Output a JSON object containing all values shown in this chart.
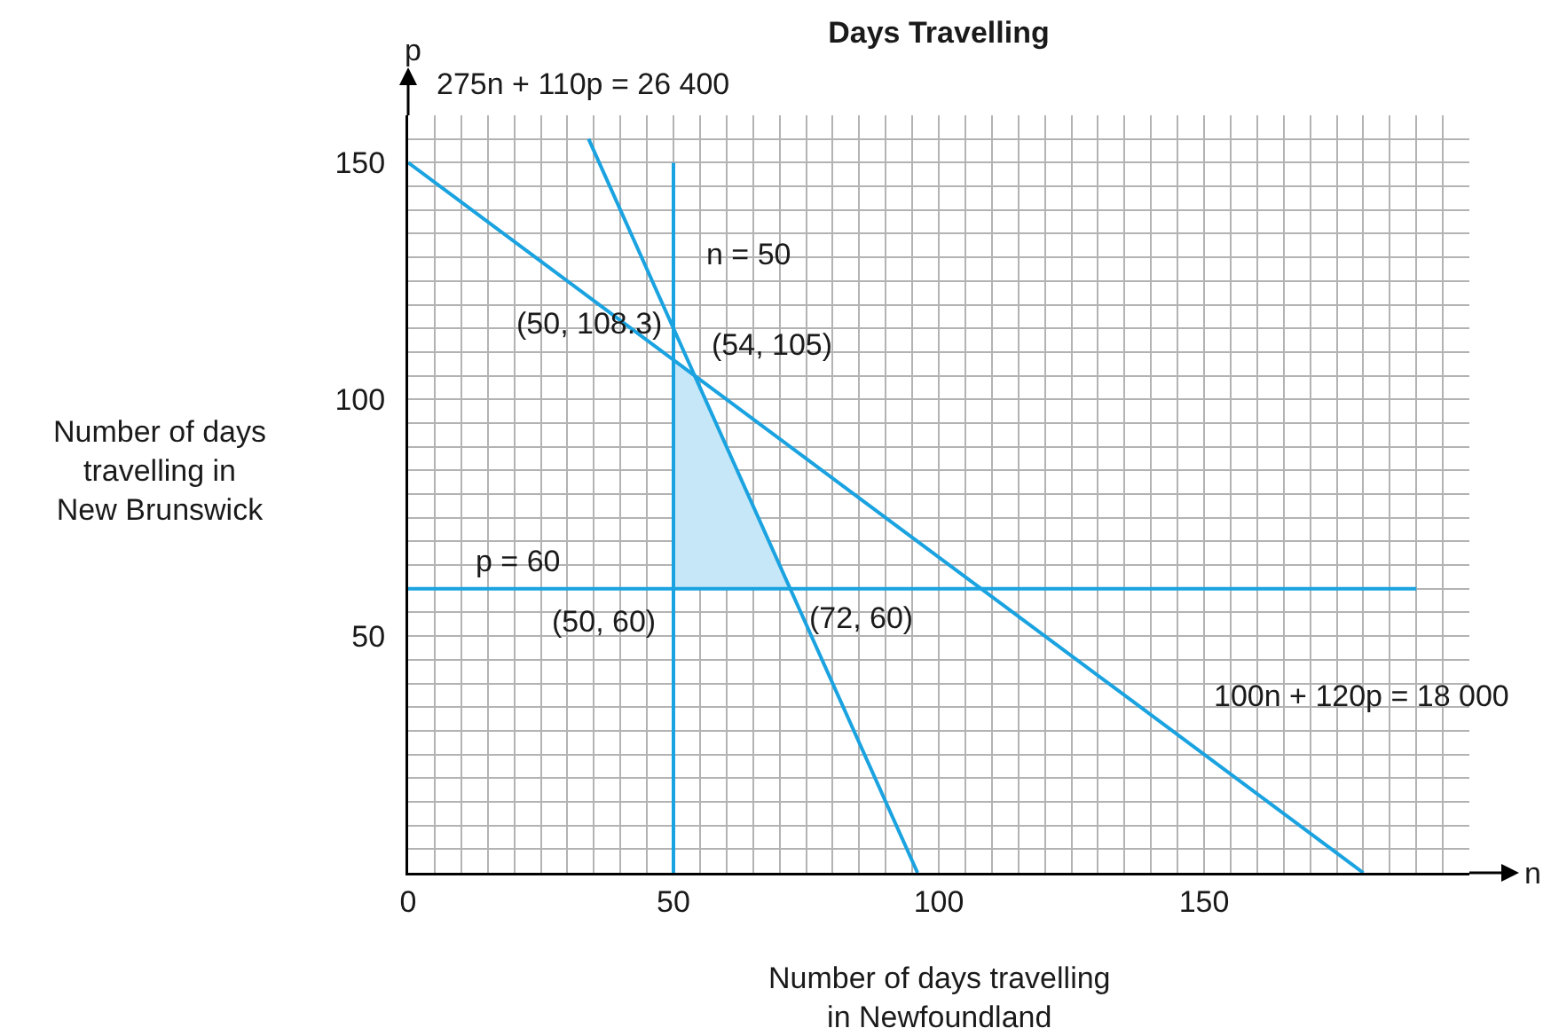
{
  "chart_data": {
    "type": "line",
    "title": "Days Travelling",
    "xlabel": "Number of days travelling in Newfoundland",
    "ylabel": "Number of days travelling in New Brunswick",
    "xlim": [
      0,
      200
    ],
    "ylim": [
      0,
      160
    ],
    "grid": true,
    "xticks": [
      0,
      {
        "value": 5,
        "label": null
      },
      {
        "value": 10,
        "label": null
      },
      {
        "value": 15,
        "label": null
      },
      {
        "value": 20,
        "label": null
      },
      {
        "value": 25,
        "label": null
      },
      {
        "value": 30,
        "label": null
      },
      {
        "value": 35,
        "label": null
      },
      {
        "value": 40,
        "label": null
      },
      {
        "value": 45,
        "label": null
      },
      50,
      {
        "value": 55,
        "label": null
      },
      {
        "value": 60,
        "label": null
      },
      {
        "value": 65,
        "label": null
      },
      {
        "value": 70,
        "label": null
      },
      {
        "value": 75,
        "label": null
      },
      {
        "value": 80,
        "label": null
      },
      {
        "value": 85,
        "label": null
      },
      {
        "value": 90,
        "label": null
      },
      {
        "value": 95,
        "label": null
      },
      100,
      {
        "value": 105,
        "label": null
      },
      {
        "value": 110,
        "label": null
      },
      {
        "value": 115,
        "label": null
      },
      {
        "value": 120,
        "label": null
      },
      {
        "value": 125,
        "label": null
      },
      {
        "value": 130,
        "label": null
      },
      {
        "value": 135,
        "label": null
      },
      {
        "value": 140,
        "label": null
      },
      {
        "value": 145,
        "label": null
      },
      150,
      {
        "value": 155,
        "label": null
      },
      {
        "value": 160,
        "label": null
      },
      {
        "value": 165,
        "label": null
      },
      {
        "value": 170,
        "label": null
      },
      {
        "value": 175,
        "label": null
      },
      {
        "value": 180,
        "label": null
      },
      {
        "value": 185,
        "label": null
      },
      {
        "value": 190,
        "label": null
      },
      {
        "value": 195,
        "label": null
      }
    ],
    "yticks": [
      {
        "value": 0,
        "label": null
      },
      {
        "value": 5,
        "label": null
      },
      {
        "value": 10,
        "label": null
      },
      {
        "value": 15,
        "label": null
      },
      {
        "value": 20,
        "label": null
      },
      {
        "value": 25,
        "label": null
      },
      {
        "value": 30,
        "label": null
      },
      {
        "value": 35,
        "label": null
      },
      {
        "value": 40,
        "label": null
      },
      {
        "value": 45,
        "label": null
      },
      50,
      {
        "value": 55,
        "label": null
      },
      {
        "value": 60,
        "label": null
      },
      {
        "value": 65,
        "label": null
      },
      {
        "value": 70,
        "label": null
      },
      {
        "value": 75,
        "label": null
      },
      {
        "value": 80,
        "label": null
      },
      {
        "value": 85,
        "label": null
      },
      {
        "value": 90,
        "label": null
      },
      {
        "value": 95,
        "label": null
      },
      100,
      {
        "value": 105,
        "label": null
      },
      {
        "value": 110,
        "label": null
      },
      {
        "value": 115,
        "label": null
      },
      {
        "value": 120,
        "label": null
      },
      {
        "value": 125,
        "label": null
      },
      {
        "value": 130,
        "label": null
      },
      {
        "value": 135,
        "label": null
      },
      {
        "value": 140,
        "label": null
      },
      {
        "value": 145,
        "label": null
      },
      150,
      {
        "value": 155,
        "label": null
      }
    ],
    "series": [
      {
        "type": "area",
        "color": "#c6e7f8",
        "x": [
          50,
          50,
          54,
          72
        ],
        "values": [
          60,
          108.3,
          105,
          60
        ]
      },
      {
        "type": "line",
        "color": "#1aa3e0",
        "x": [
          0,
          180
        ],
        "values": [
          150,
          0
        ]
      },
      {
        "type": "line",
        "color": "#1aa3e0",
        "x": [
          34,
          96
        ],
        "values": [
          155,
          0
        ]
      },
      {
        "type": "line",
        "color": "#1aa3e0",
        "x": [
          50,
          50
        ],
        "values": [
          0,
          150
        ]
      },
      {
        "type": "line",
        "color": "#1aa3e0",
        "x": [
          0,
          190
        ],
        "values": [
          60,
          60
        ]
      }
    ],
    "annotations": [
      "275n + 110p = 26 400",
      "n = 50",
      "p = 60",
      "100n + 120p = 18 000",
      "n",
      "p",
      {
        "text": "(54, 105)",
        "x": 54,
        "y": 105
      },
      {
        "text": "(50, 108.3)",
        "x": 50,
        "y": 108.3
      },
      {
        "text": "(50, 60)",
        "x": 50,
        "y": 60
      },
      {
        "text": "(72, 60)",
        "x": 72,
        "y": 60
      }
    ]
  }
}
